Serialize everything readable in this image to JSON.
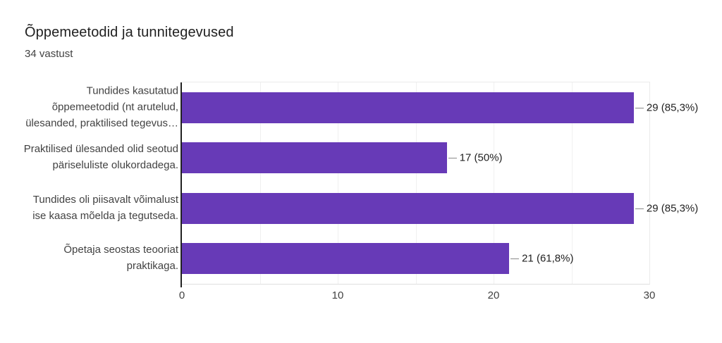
{
  "chart": {
    "bar_color": "#673ab7",
    "axis_color": "#212121",
    "gridline_color": "#f0f0f0",
    "text_color": "#424242",
    "title_color": "#212121"
  },
  "chart_data": {
    "type": "bar",
    "orientation": "horizontal",
    "title": "Õppemeetodid ja tunnitegevused",
    "subtitle": "34 vastust",
    "categories": [
      "Tundides kasutatud õppemeetodid (nt arutelud, ülesanded, praktilised tegevus…",
      "Praktilised ülesanded olid seotud päriseluliste olukordadega.",
      "Tundides oli piisavalt võimalust ise kaasa mõelda ja tegutseda.",
      "Õpetaja seostas teooriat praktikaga."
    ],
    "category_lines": [
      [
        "Tundides kasutatud",
        "õppemeetodid (nt arutelud,",
        "ülesanded, praktilised tegevus…"
      ],
      [
        "Praktilised ülesanded olid seotud",
        "päriseluliste olukordadega."
      ],
      [
        "Tundides oli piisavalt võimalust",
        "ise kaasa mõelda ja tegutseda."
      ],
      [
        "Õpetaja seostas teooriat",
        "praktikaga."
      ]
    ],
    "values": [
      29,
      17,
      29,
      21
    ],
    "value_labels": [
      "29 (85,3%)",
      "17 (50%)",
      "29 (85,3%)",
      "21 (61,8%)"
    ],
    "xlim": [
      0,
      30
    ],
    "x_ticks": [
      0,
      10,
      20,
      30
    ],
    "grid_values": [
      5,
      10,
      15,
      20,
      25
    ],
    "grid": true,
    "legend_position": "none"
  }
}
